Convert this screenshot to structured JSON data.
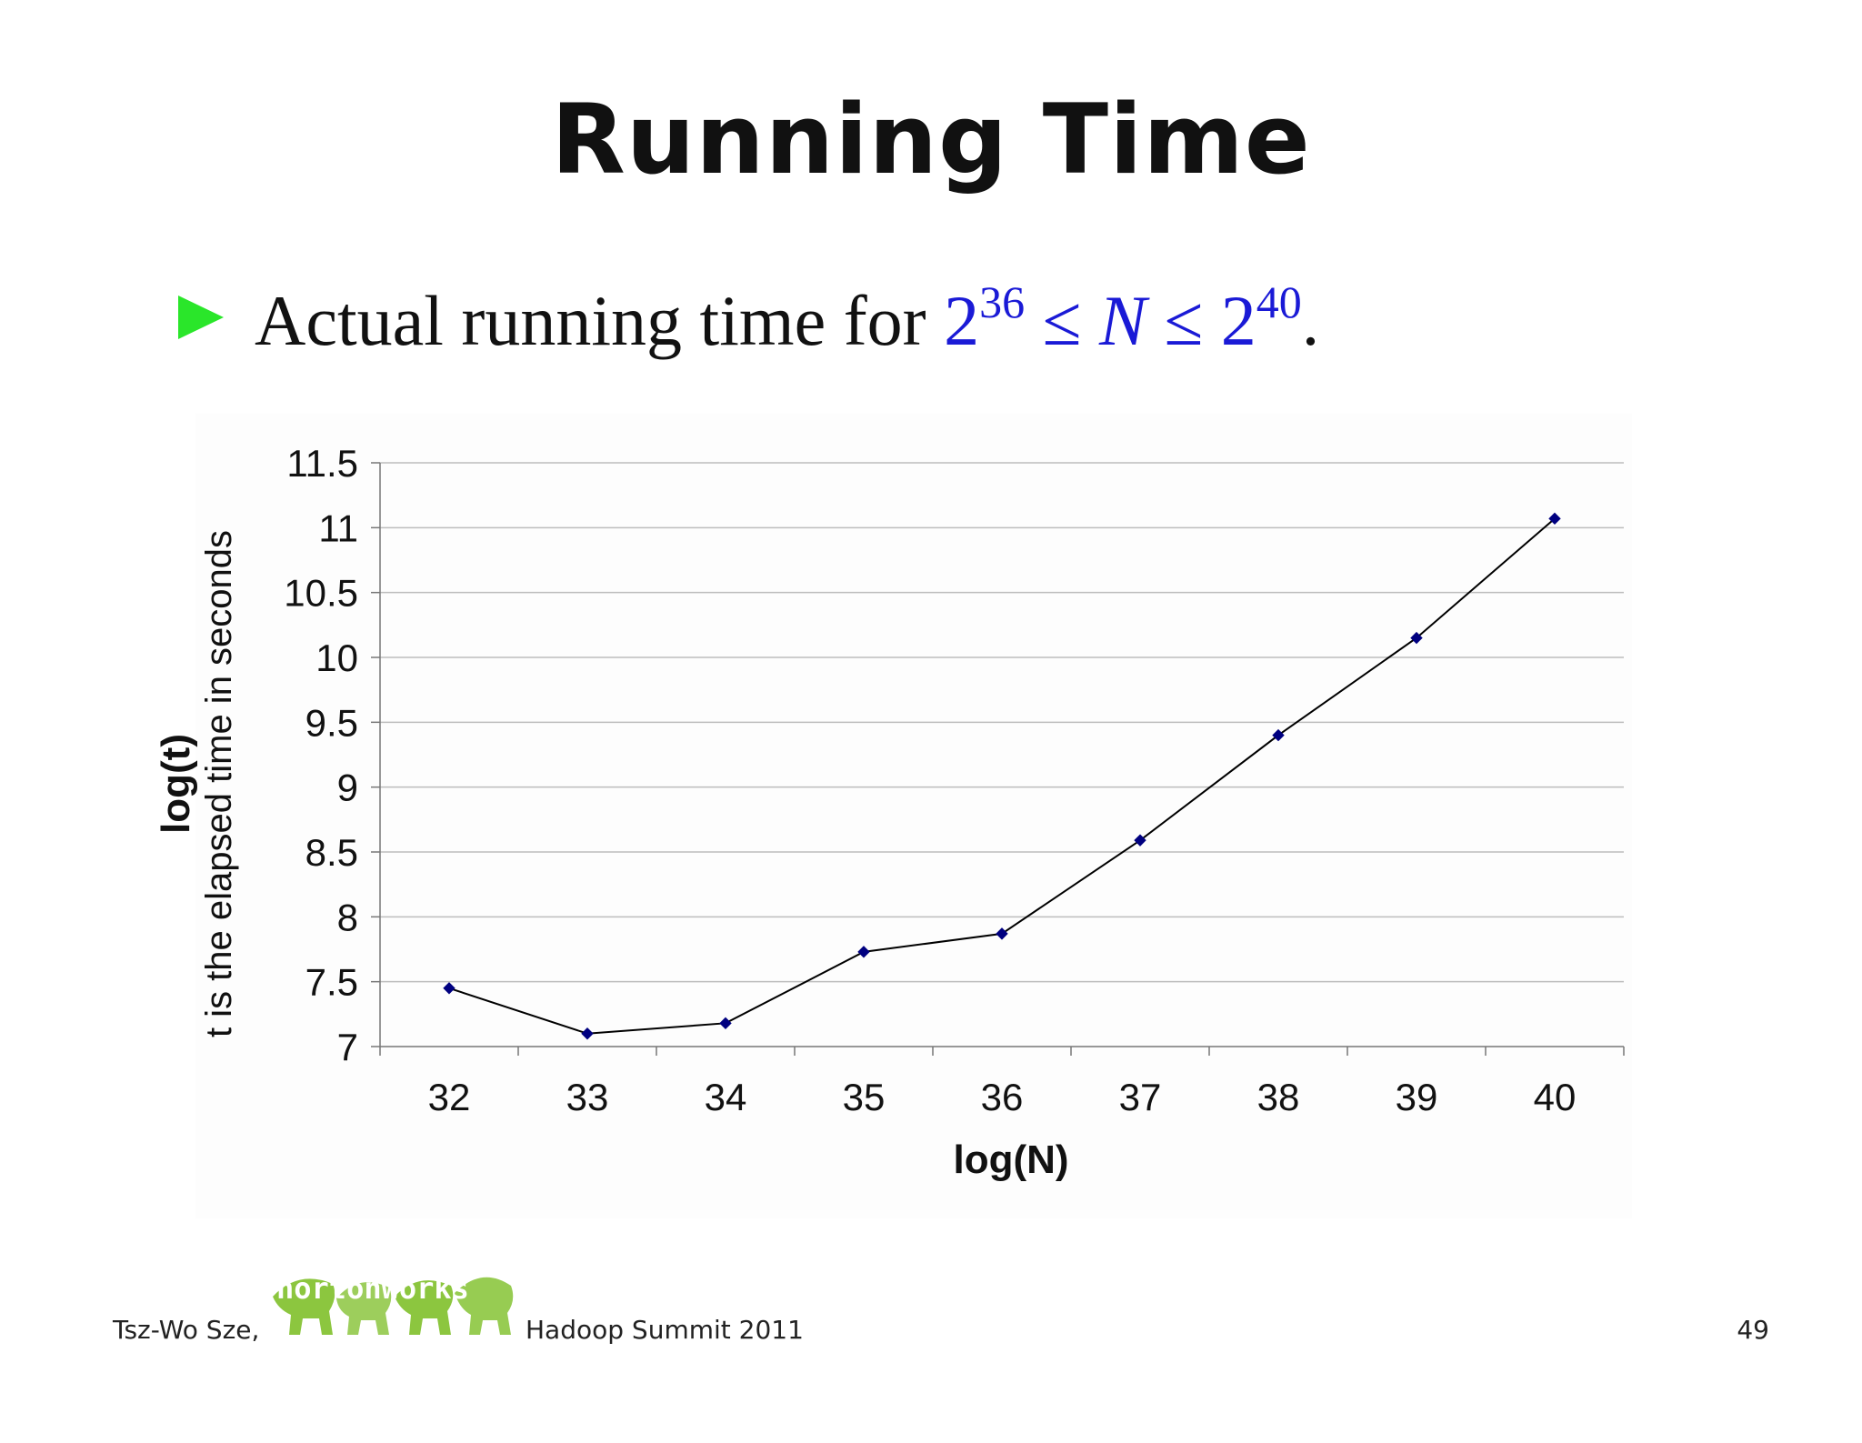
{
  "slide": {
    "title": "Running Time",
    "bullet": {
      "text": "Actual running time for",
      "math": {
        "base1": "2",
        "exp1": "36",
        "leq1": "≤",
        "var": "N",
        "leq2": "≤",
        "base2": "2",
        "exp2": "40"
      },
      "end": "."
    }
  },
  "footer": {
    "author": "Tsz-Wo Sze,",
    "logo_text": "hortonworks",
    "event": "Hadoop Summit 2011",
    "page": "49"
  },
  "colors": {
    "bullet_arrow": "#2ae62a",
    "math": "#1a1ad6",
    "line": "#000000",
    "marker": "#000080",
    "gridline": "#bdbdbd",
    "logo": "#8cc63f"
  },
  "chart_data": {
    "type": "line",
    "xlabel": "log(N)",
    "ylabel": "log(t)",
    "ylabel_sub": "t is the elapsed time in seconds",
    "x": [
      32,
      33,
      34,
      35,
      36,
      37,
      38,
      39,
      40
    ],
    "x_ticks": [
      "32",
      "33",
      "34",
      "35",
      "36",
      "37",
      "38",
      "39",
      "40"
    ],
    "y": [
      7.45,
      7.1,
      7.18,
      7.73,
      7.87,
      8.59,
      9.4,
      10.15,
      11.07
    ],
    "y_ticks": [
      "7",
      "7.5",
      "8",
      "8.5",
      "9",
      "9.5",
      "10",
      "10.5",
      "11",
      "11.5"
    ],
    "ylim": [
      7,
      11.5
    ],
    "grid": "horizontal",
    "legend": "none"
  }
}
